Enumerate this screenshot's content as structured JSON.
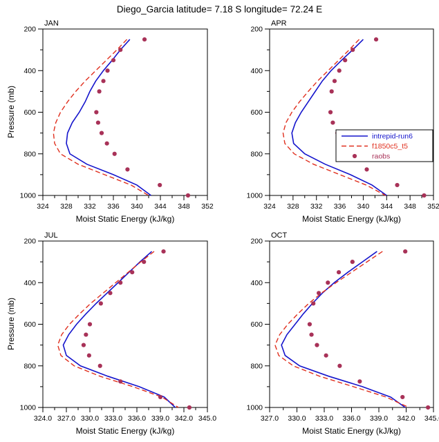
{
  "chart_data": {
    "type": "line",
    "title": "Diego_Garcia  latitude= 7.18 S longitude= 72.24 E",
    "xlabel": "Moist Static Energy (kJ/kg)",
    "ylabel": "Pressure (mb)",
    "y_inverted": true,
    "grid": false,
    "legend": {
      "location_panel": "APR",
      "entries": [
        {
          "name": "intrepid-run6",
          "color": "#1414cc",
          "style": "solid"
        },
        {
          "name": "f1850c5_t5",
          "color": "#e02f1e",
          "style": "dashed"
        },
        {
          "name": "raobs",
          "color": "#a83258",
          "style": "dots"
        }
      ]
    },
    "panels": [
      {
        "label": "JAN",
        "xlim": [
          324,
          352
        ],
        "xticks": [
          324,
          328,
          332,
          336,
          340,
          344,
          348,
          352
        ],
        "xtick_labels": [
          "324",
          "328",
          "332",
          "336",
          "340",
          "344",
          "348",
          "352"
        ],
        "xminor": 2,
        "ylim": [
          200,
          1000
        ],
        "yticks": [
          200,
          400,
          600,
          800,
          1000
        ],
        "ytick_labels": [
          "200",
          "400",
          "600",
          "800",
          "1000"
        ],
        "yminor": 100,
        "series": {
          "intrepid-run6": {
            "pressure": [
              250,
              300,
              350,
              400,
              450,
              500,
              550,
              600,
              650,
              700,
              750,
              800,
              850,
              900,
              950,
              1000
            ],
            "values": [
              338.8,
              337.2,
              335.8,
              334.3,
              333.0,
              332.0,
              331.2,
              330.2,
              329.0,
              328.2,
              328.0,
              328.6,
              331.5,
              336.0,
              340.0,
              342.4
            ]
          },
          "f1850c5_t5": {
            "pressure": [
              250,
              300,
              350,
              400,
              450,
              500,
              550,
              600,
              650,
              700,
              750,
              800,
              850,
              900,
              950,
              1000
            ],
            "values": [
              338.3,
              336.6,
              334.8,
              333.0,
              331.2,
              329.6,
              328.2,
              327.0,
              326.2,
              325.8,
              326.0,
              327.0,
              330.0,
              334.5,
              339.0,
              342.0
            ]
          },
          "raobs": {
            "pressure": [
              250,
              300,
              350,
              400,
              450,
              500,
              600,
              650,
              700,
              750,
              800,
              875,
              950,
              1000
            ],
            "values": [
              341.3,
              337.2,
              336.0,
              335.0,
              334.3,
              333.6,
              333.1,
              333.4,
              334.0,
              334.9,
              336.2,
              338.4,
              343.9,
              348.7
            ]
          }
        }
      },
      {
        "label": "APR",
        "xlim": [
          324,
          352
        ],
        "xticks": [
          324,
          328,
          332,
          336,
          340,
          344,
          348,
          352
        ],
        "xtick_labels": [
          "324",
          "328",
          "332",
          "336",
          "340",
          "344",
          "348",
          "352"
        ],
        "xminor": 2,
        "ylim": [
          200,
          1000
        ],
        "yticks": [
          200,
          400,
          600,
          800,
          1000
        ],
        "ytick_labels": [
          "200",
          "400",
          "600",
          "800",
          "1000"
        ],
        "yminor": 100,
        "series": {
          "intrepid-run6": {
            "pressure": [
              250,
              300,
              350,
              400,
              450,
              500,
              550,
              600,
              650,
              700,
              750,
              800,
              850,
              900,
              950,
              1000
            ],
            "values": [
              340.0,
              338.2,
              336.3,
              334.5,
              333.0,
              331.8,
              330.6,
              329.4,
              328.4,
              327.8,
              328.1,
              330.0,
              333.5,
              337.8,
              341.5,
              344.0
            ]
          },
          "f1850c5_t5": {
            "pressure": [
              250,
              300,
              350,
              400,
              450,
              500,
              550,
              600,
              650,
              700,
              750,
              800,
              850,
              900,
              950,
              1000
            ],
            "values": [
              339.3,
              337.6,
              335.8,
              334.0,
              332.2,
              330.6,
              329.1,
              327.8,
              326.8,
              326.3,
              326.6,
              328.2,
              331.5,
              336.0,
              340.5,
              343.8
            ]
          },
          "raobs": {
            "pressure": [
              250,
              300,
              350,
              400,
              450,
              500,
              600,
              650,
              700,
              750,
              800,
              875,
              950,
              1000
            ],
            "values": [
              342.2,
              338.2,
              336.9,
              335.9,
              335.1,
              334.6,
              334.4,
              334.8,
              335.6,
              336.6,
              338.0,
              340.6,
              345.8,
              350.4
            ]
          }
        }
      },
      {
        "label": "JUL",
        "xlim": [
          324,
          345
        ],
        "xticks": [
          324,
          327,
          330,
          333,
          336,
          339,
          342,
          345
        ],
        "xtick_labels": [
          "324.0",
          "327.0",
          "330.0",
          "333.0",
          "336.0",
          "339.0",
          "342.0",
          "345.0"
        ],
        "xminor": 1.5,
        "ylim": [
          200,
          1000
        ],
        "yticks": [
          200,
          400,
          600,
          800,
          1000
        ],
        "ytick_labels": [
          "200",
          "400",
          "600",
          "800",
          "1000"
        ],
        "yminor": 100,
        "series": {
          "intrepid-run6": {
            "pressure": [
              250,
              300,
              350,
              400,
              450,
              500,
              550,
              600,
              650,
              700,
              750,
              800,
              850,
              900,
              950,
              1000
            ],
            "values": [
              337.9,
              336.4,
              335.0,
              333.6,
              332.2,
              330.8,
              329.5,
              328.3,
              327.3,
              326.6,
              327.0,
              328.8,
              332.3,
              336.3,
              339.5,
              340.9
            ]
          },
          "f1850c5_t5": {
            "pressure": [
              250,
              300,
              350,
              400,
              450,
              500,
              550,
              600,
              650,
              700,
              750,
              800,
              850,
              900,
              950,
              1000
            ],
            "values": [
              338.2,
              336.5,
              334.9,
              333.3,
              331.7,
              330.1,
              328.7,
              327.4,
              326.4,
              325.9,
              326.3,
              328.0,
              331.3,
              335.5,
              339.2,
              341.3
            ]
          },
          "raobs": {
            "pressure": [
              250,
              300,
              350,
              400,
              450,
              500,
              600,
              650,
              700,
              750,
              800,
              875,
              950,
              1000
            ],
            "values": [
              339.4,
              336.9,
              335.4,
              333.9,
              332.6,
              331.4,
              330.0,
              329.5,
              329.2,
              329.9,
              331.3,
              333.9,
              339.0,
              342.7
            ]
          }
        }
      },
      {
        "label": "OCT",
        "xlim": [
          327,
          345
        ],
        "xticks": [
          327,
          330,
          333,
          336,
          339,
          342,
          345
        ],
        "xtick_labels": [
          "327.0",
          "330.0",
          "333.0",
          "336.0",
          "339.0",
          "342.0",
          "345.0"
        ],
        "xminor": 1.5,
        "ylim": [
          200,
          1000
        ],
        "yticks": [
          200,
          400,
          600,
          800,
          1000
        ],
        "ytick_labels": [
          "200",
          "400",
          "600",
          "800",
          "1000"
        ],
        "yminor": 100,
        "series": {
          "intrepid-run6": {
            "pressure": [
              250,
              300,
              350,
              400,
              450,
              500,
              550,
              600,
              650,
              700,
              750,
              800,
              850,
              900,
              950,
              1000
            ],
            "values": [
              338.8,
              337.2,
              335.6,
              334.1,
              332.8,
              331.7,
              330.7,
              329.8,
              328.9,
              328.3,
              328.7,
              330.3,
              333.5,
              337.2,
              340.3,
              341.9
            ]
          },
          "f1850c5_t5": {
            "pressure": [
              250,
              300,
              350,
              400,
              450,
              500,
              550,
              600,
              650,
              700,
              750,
              800,
              850,
              900,
              950,
              1000
            ],
            "values": [
              339.4,
              337.7,
              336.0,
              334.3,
              332.7,
              331.3,
              330.1,
              329.0,
              328.1,
              327.6,
              328.0,
              329.6,
              332.5,
              336.2,
              339.8,
              342.3
            ]
          },
          "raobs": {
            "pressure": [
              250,
              300,
              350,
              400,
              450,
              500,
              600,
              650,
              700,
              750,
              800,
              875,
              950,
              1000
            ],
            "values": [
              341.9,
              336.1,
              334.6,
              333.4,
              332.4,
              331.8,
              331.4,
              331.6,
              332.2,
              333.2,
              334.7,
              336.9,
              341.6,
              344.4
            ]
          }
        }
      }
    ]
  }
}
